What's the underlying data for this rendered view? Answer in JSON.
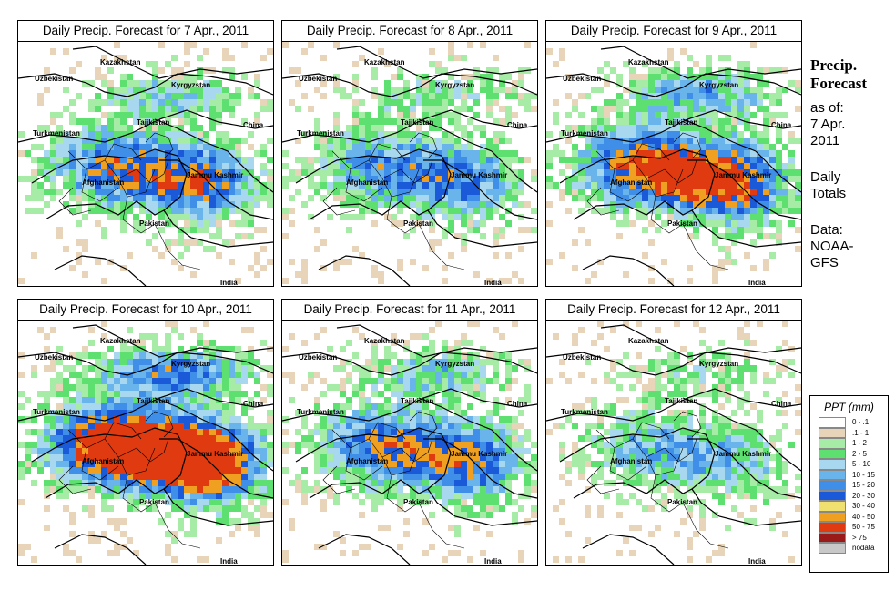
{
  "panels": [
    {
      "title": "Daily Precip. Forecast for  7 Apr., 2011",
      "intensity": 1.0,
      "seed": 11
    },
    {
      "title": "Daily Precip. Forecast for  8 Apr., 2011",
      "intensity": 0.8,
      "seed": 23
    },
    {
      "title": "Daily Precip. Forecast for  9 Apr., 2011",
      "intensity": 1.3,
      "seed": 37
    },
    {
      "title": "Daily Precip. Forecast for  10 Apr., 2011",
      "intensity": 1.7,
      "seed": 41
    },
    {
      "title": "Daily Precip. Forecast for  11 Apr., 2011",
      "intensity": 1.0,
      "seed": 53
    },
    {
      "title": "Daily Precip. Forecast for  12 Apr., 2011",
      "intensity": 0.6,
      "seed": 67
    }
  ],
  "labels": {
    "kazakhstan": "Kazakhstan",
    "uzbekistan": "Uzbekistan",
    "kyrgyzstan": "Kyrgyzstan",
    "tajikistan": "Tajikistan",
    "turkmenistan": "Turkmenistan",
    "china": "China",
    "afghanistan": "Afghanistan",
    "jammu_kashmir": "Jammu Kashmir",
    "pakistan": "Pakistan",
    "india": "India"
  },
  "side": {
    "title_line1": "Precip.",
    "title_line2": "Forecast",
    "asof": "as of:",
    "date_line1": "7 Apr.",
    "date_line2": "2011",
    "daily_line1": "Daily",
    "daily_line2": "Totals",
    "data_line1": "Data:",
    "data_line2": "NOAA-",
    "data_line3": "GFS"
  },
  "legend": {
    "title": "PPT (mm)",
    "items": [
      {
        "label": "0 - .1",
        "color": "#ffffff"
      },
      {
        "label": ".1 - 1",
        "color": "#e8d4b8"
      },
      {
        "label": "1 - 2",
        "color": "#a6eba6"
      },
      {
        "label": "2 - 5",
        "color": "#5ee070"
      },
      {
        "label": "5 - 10",
        "color": "#a8d8f0"
      },
      {
        "label": "10 - 15",
        "color": "#6ab4ec"
      },
      {
        "label": "15 - 20",
        "color": "#3f8ee8"
      },
      {
        "label": "20 - 30",
        "color": "#1a5ad8"
      },
      {
        "label": "30 - 40",
        "color": "#f0e070"
      },
      {
        "label": "40 - 50",
        "color": "#f0a020"
      },
      {
        "label": "50 - 75",
        "color": "#e03a10"
      },
      {
        "label": "> 75",
        "color": "#9a1a1a"
      },
      {
        "label": "nodata",
        "color": "#c8c8c8"
      }
    ]
  }
}
